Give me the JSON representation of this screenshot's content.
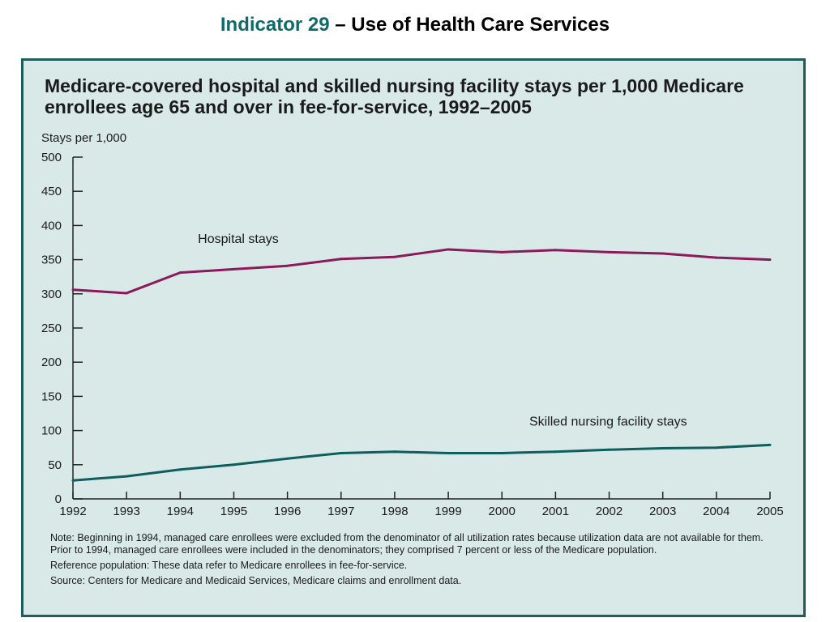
{
  "slide": {
    "indicator": "Indicator 29",
    "title_rest": " – Use of Health Care Services"
  },
  "chart_data": {
    "type": "line",
    "title": "Medicare-covered hospital and skilled nursing facility stays per 1,000 Medicare enrollees age 65 and over in fee-for-service, 1992–2005",
    "ylabel": "Stays per 1,000",
    "xlabel": "",
    "x": [
      "1992",
      "1993",
      "1994",
      "1995",
      "1996",
      "1997",
      "1998",
      "1999",
      "2000",
      "2001",
      "2002",
      "2003",
      "2004",
      "2005"
    ],
    "ylim": [
      0,
      500
    ],
    "yticks": [
      0,
      50,
      100,
      150,
      200,
      250,
      300,
      350,
      400,
      450,
      500
    ],
    "grid": false,
    "series": [
      {
        "name": "Hospital stays",
        "color": "#8b1a5a",
        "values": [
          306,
          301,
          331,
          336,
          341,
          351,
          354,
          365,
          361,
          364,
          361,
          359,
          353,
          350
        ]
      },
      {
        "name": "Skilled nursing facility stays",
        "color": "#0f5e5e",
        "values": [
          27,
          33,
          43,
          50,
          59,
          67,
          69,
          67,
          67,
          69,
          72,
          74,
          75,
          79
        ]
      }
    ]
  },
  "notes": {
    "note": "Note: Beginning in 1994, managed care enrollees were excluded from the denominator of all utilization rates because utilization data are not available for them. Prior to 1994, managed care enrollees were included in the denominators; they comprised 7 percent or less of the Medicare population.",
    "reference": "Reference population: These data refer to Medicare enrollees in fee-for-service.",
    "source": "Source: Centers for Medicare and Medicaid Services, Medicare claims and enrollment data."
  },
  "colors": {
    "frame": "#1f5c5c",
    "panel": "#d9e9e8",
    "indicator_text": "#0f6b6b"
  }
}
